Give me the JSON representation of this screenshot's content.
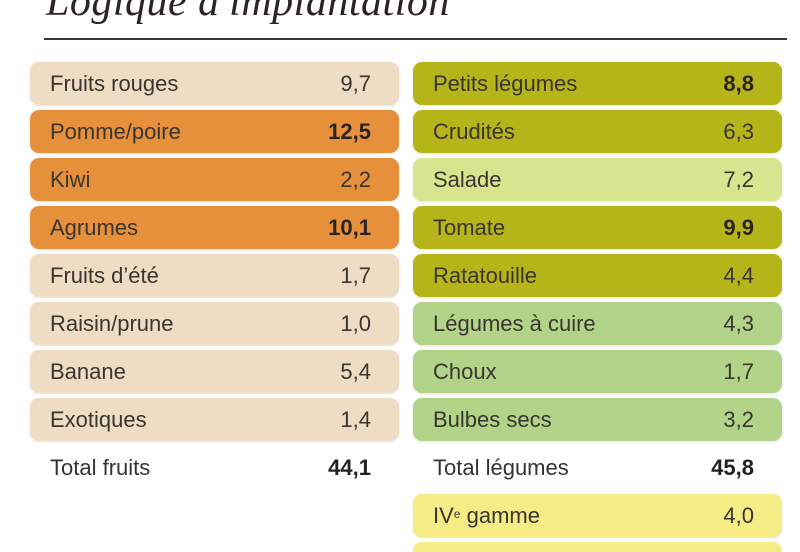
{
  "title": "Logique d'implantation",
  "colors": {
    "beige": "#eedcc4",
    "orange": "#e7903b",
    "olive": "#b5b418",
    "light_green_yellow": "#d8e58f",
    "green": "#b2d489",
    "yellow": "#f5ec86"
  },
  "fruits": {
    "rows": [
      {
        "label": "Fruits rouges",
        "value": "9,7",
        "color": "#eedcc4",
        "bold": false
      },
      {
        "label": "Pomme/poire",
        "value": "12,5",
        "color": "#e7903b",
        "bold": true
      },
      {
        "label": "Kiwi",
        "value": "2,2",
        "color": "#e7903b",
        "bold": false
      },
      {
        "label": "Agrumes",
        "value": "10,1",
        "color": "#e7903b",
        "bold": true
      },
      {
        "label": "Fruits d’été",
        "value": "1,7",
        "color": "#eedcc4",
        "bold": false
      },
      {
        "label": "Raisin/prune",
        "value": "1,0",
        "color": "#eedcc4",
        "bold": false
      },
      {
        "label": "Banane",
        "value": "5,4",
        "color": "#eedcc4",
        "bold": false
      },
      {
        "label": "Exotiques",
        "value": "1,4",
        "color": "#eedcc4",
        "bold": false
      }
    ],
    "total_label": "Total fruits",
    "total_value": "44,1"
  },
  "legumes": {
    "rows": [
      {
        "label": "Petits légumes",
        "value": "8,8",
        "color": "#b5b418",
        "bold": true
      },
      {
        "label": "Crudités",
        "value": "6,3",
        "color": "#b5b418",
        "bold": false
      },
      {
        "label": "Salade",
        "value": "7,2",
        "color": "#d8e58f",
        "bold": false
      },
      {
        "label": "Tomate",
        "value": "9,9",
        "color": "#b5b418",
        "bold": true
      },
      {
        "label": "Ratatouille",
        "value": "4,4",
        "color": "#b5b418",
        "bold": false
      },
      {
        "label": "Légumes à cuire",
        "value": "4,3",
        "color": "#b2d489",
        "bold": false
      },
      {
        "label": "Choux",
        "value": "1,7",
        "color": "#b2d489",
        "bold": false
      },
      {
        "label": "Bulbes secs",
        "value": "3,2",
        "color": "#b2d489",
        "bold": false
      }
    ],
    "total_label": "Total légumes",
    "total_value": "45,8"
  },
  "gamme": {
    "label_prefix": "IV",
    "label_sup": "e",
    "label_suffix": " gamme",
    "value": "4,0",
    "color": "#f5ec86"
  }
}
